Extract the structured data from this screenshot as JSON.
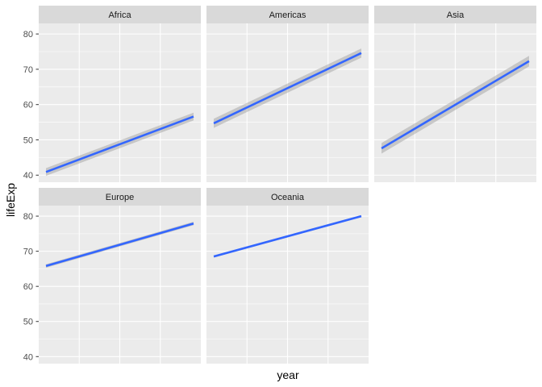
{
  "chart_data": {
    "type": "line",
    "xlabel": "year",
    "ylabel": "lifeExp",
    "xlim": [
      1952,
      2007
    ],
    "ylim": [
      38,
      83
    ],
    "yticks": [
      40,
      50,
      60,
      70,
      80
    ],
    "grid": true,
    "x_tick_labels_shown": false,
    "panels": [
      {
        "name": "Africa",
        "x": [
          1952,
          2007
        ],
        "values": [
          40.9,
          56.6
        ],
        "band": [
          1.1,
          1.1
        ]
      },
      {
        "name": "Americas",
        "x": [
          1952,
          2007
        ],
        "values": [
          54.7,
          74.6
        ],
        "band": [
          1.3,
          1.3
        ]
      },
      {
        "name": "Asia",
        "x": [
          1952,
          2007
        ],
        "values": [
          47.6,
          72.3
        ],
        "band": [
          1.5,
          1.5
        ]
      },
      {
        "name": "Europe",
        "x": [
          1952,
          2007
        ],
        "values": [
          65.8,
          77.9
        ],
        "band": [
          0.5,
          0.5
        ]
      },
      {
        "name": "Oceania",
        "x": [
          1952,
          2007
        ],
        "values": [
          68.5,
          80.0
        ],
        "band": [
          0.3,
          0.3
        ]
      }
    ],
    "colors": {
      "line": "#3366FF",
      "band": "#999999",
      "panel_bg": "#EBEBEB",
      "strip_bg": "#D9D9D9",
      "grid": "#FFFFFF"
    }
  }
}
